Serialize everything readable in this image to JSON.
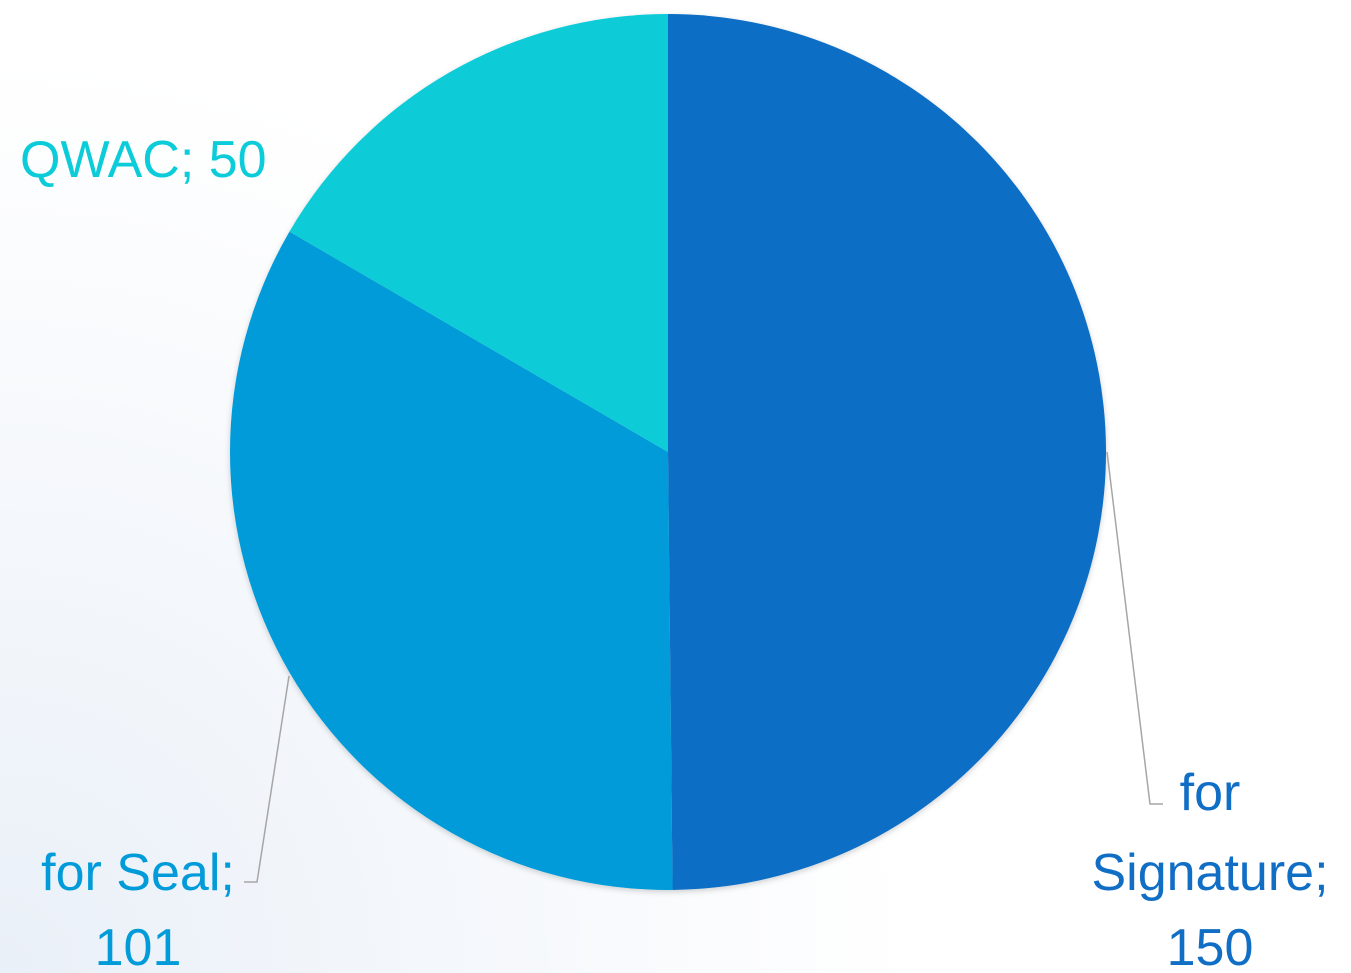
{
  "chart_data": {
    "type": "pie",
    "title": "",
    "slices": [
      {
        "name": "for Signature",
        "value": 150,
        "color": "#116ec5",
        "label_lines": [
          "for",
          "Signature;",
          "150"
        ]
      },
      {
        "name": "for Seal",
        "value": 101,
        "color": "#009bd8",
        "label_lines": [
          "for Seal;",
          "101"
        ]
      },
      {
        "name": "QWAC",
        "value": 50,
        "color": "#0bccd8",
        "label_lines": [
          "QWAC; 50"
        ]
      }
    ],
    "start_angle_deg": 0,
    "direction": "clockwise",
    "legend": "none",
    "leader_line_color": "#a6a6a6"
  }
}
